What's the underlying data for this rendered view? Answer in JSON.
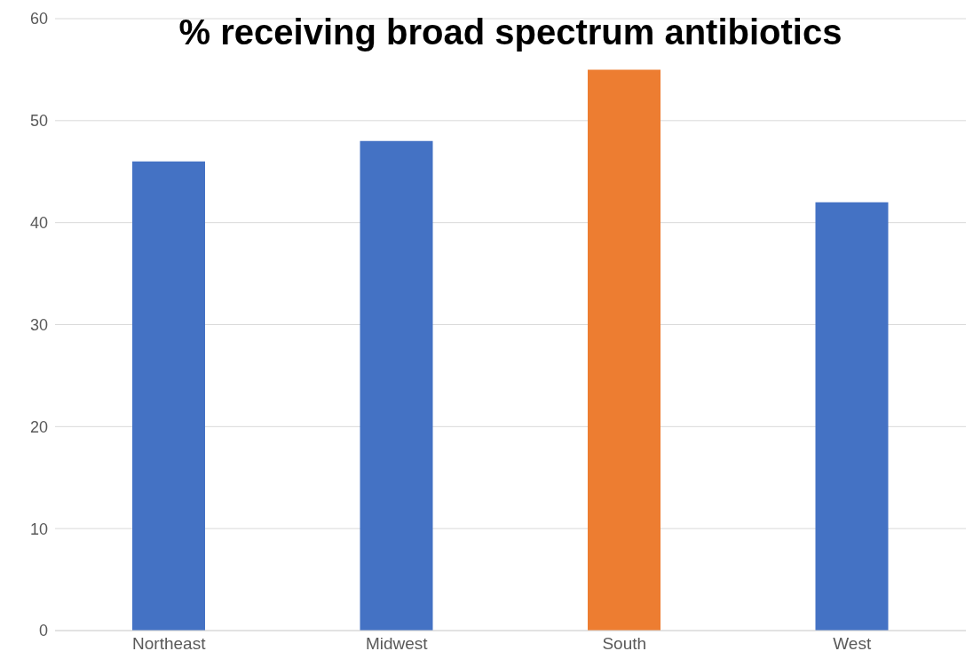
{
  "chart_data": {
    "type": "bar",
    "title": "% receiving broad spectrum antibiotics",
    "categories": [
      "Northeast",
      "Midwest",
      "South",
      "West"
    ],
    "values": [
      46,
      48,
      55,
      42
    ],
    "colors": [
      "#4472c4",
      "#4472c4",
      "#ed7d31",
      "#4472c4"
    ],
    "ylim": [
      0,
      60
    ],
    "yticks": [
      0,
      10,
      20,
      30,
      40,
      50,
      60
    ],
    "grid": "y"
  }
}
